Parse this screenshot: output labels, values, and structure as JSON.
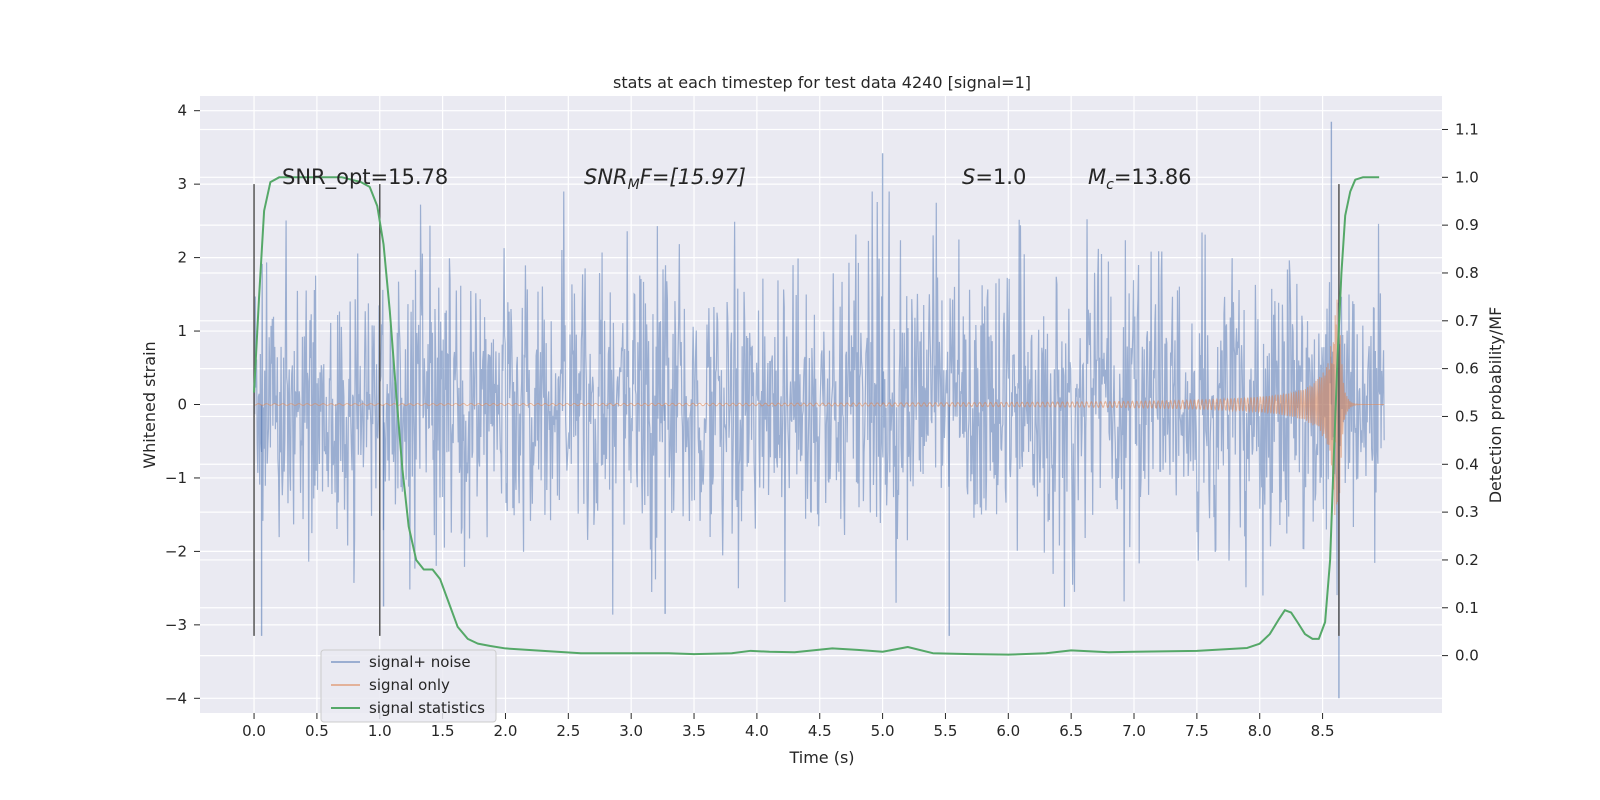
{
  "chart_data": {
    "type": "line",
    "title": "stats at each timestep for test data 4240 [signal=1]",
    "xlabel": "Time (s)",
    "ylabel": "Whitened strain",
    "y2label": "Detection probability/MF",
    "xlim": [
      -0.43,
      9.45
    ],
    "ylim": [
      -4.2,
      4.2
    ],
    "y2lim": [
      -0.12,
      1.17
    ],
    "x_ticks": [
      0.0,
      0.5,
      1.0,
      1.5,
      2.0,
      2.5,
      3.0,
      3.5,
      4.0,
      4.5,
      5.0,
      5.5,
      6.0,
      6.5,
      7.0,
      7.5,
      8.0,
      8.5
    ],
    "y_ticks": [
      -4,
      -3,
      -2,
      -1,
      0,
      1,
      2,
      3,
      4
    ],
    "y2_ticks": [
      0.0,
      0.1,
      0.2,
      0.3,
      0.4,
      0.5,
      0.6,
      0.7,
      0.8,
      0.9,
      1.0,
      1.1
    ],
    "grid": true,
    "legend_position": "lower-left",
    "annotations": {
      "snr_opt": "SNR_opt=15.78",
      "snr_mf_base": "SNR",
      "snr_mf_sub": "M",
      "snr_mf_rest": "F=[15.97]",
      "s_base": "S",
      "s_rest": "=1.0",
      "mc_base": "M",
      "mc_sub": "c",
      "mc_rest": "=13.86"
    },
    "window_markers": [
      {
        "x": 0.0,
        "y_range": [
          -3.15,
          3.0
        ]
      },
      {
        "x": 1.0,
        "y_range": [
          -3.15,
          3.0
        ]
      },
      {
        "x": 8.63,
        "y_range": [
          -3.15,
          3.0
        ]
      }
    ],
    "series": [
      {
        "name": "signal+ noise",
        "color": "#4C72B0",
        "kind": "noise",
        "x_range": [
          0.0,
          8.99
        ],
        "typical_amplitude": 1.0,
        "peak_values": [
          {
            "x": 5.0,
            "y": 3.42
          },
          {
            "x": 8.57,
            "y": 3.85
          },
          {
            "x": 8.63,
            "y": -4.0
          },
          {
            "x": 0.06,
            "y": -3.15
          },
          {
            "x": 3.27,
            "y": -2.85
          },
          {
            "x": 5.53,
            "y": -3.15
          },
          {
            "x": 1.03,
            "y": -2.75
          }
        ]
      },
      {
        "name": "signal only",
        "color": "#DD8452",
        "kind": "chirp",
        "x_range": [
          0.0,
          8.99
        ],
        "merger_time": 8.63,
        "peak_amplitude": 1.55
      },
      {
        "name": "signal statistics",
        "color": "#55A868",
        "axis": "right",
        "x": [
          0.0,
          0.04,
          0.08,
          0.13,
          0.2,
          0.3,
          0.5,
          0.7,
          0.85,
          0.92,
          0.98,
          1.03,
          1.08,
          1.13,
          1.18,
          1.23,
          1.29,
          1.35,
          1.42,
          1.48,
          1.55,
          1.62,
          1.7,
          1.78,
          1.88,
          2.0,
          2.3,
          2.6,
          3.0,
          3.3,
          3.5,
          3.8,
          3.95,
          4.1,
          4.3,
          4.6,
          4.8,
          5.0,
          5.2,
          5.4,
          5.7,
          6.0,
          6.3,
          6.5,
          6.8,
          7.0,
          7.5,
          7.9,
          8.0,
          8.08,
          8.15,
          8.2,
          8.25,
          8.3,
          8.36,
          8.42,
          8.47,
          8.52,
          8.56,
          8.59,
          8.62,
          8.65,
          8.68,
          8.72,
          8.76,
          8.82,
          8.9,
          8.95
        ],
        "values": [
          0.55,
          0.75,
          0.93,
          0.99,
          1.0,
          1.0,
          1.0,
          1.0,
          0.99,
          0.98,
          0.94,
          0.86,
          0.72,
          0.55,
          0.39,
          0.27,
          0.2,
          0.18,
          0.18,
          0.16,
          0.11,
          0.06,
          0.035,
          0.025,
          0.02,
          0.015,
          0.01,
          0.005,
          0.005,
          0.005,
          0.003,
          0.005,
          0.01,
          0.008,
          0.007,
          0.015,
          0.012,
          0.008,
          0.018,
          0.005,
          0.003,
          0.002,
          0.005,
          0.011,
          0.007,
          0.008,
          0.01,
          0.016,
          0.025,
          0.045,
          0.075,
          0.095,
          0.09,
          0.07,
          0.045,
          0.035,
          0.035,
          0.07,
          0.2,
          0.42,
          0.63,
          0.8,
          0.92,
          0.97,
          0.995,
          1.0,
          1.0,
          1.0
        ]
      }
    ]
  }
}
